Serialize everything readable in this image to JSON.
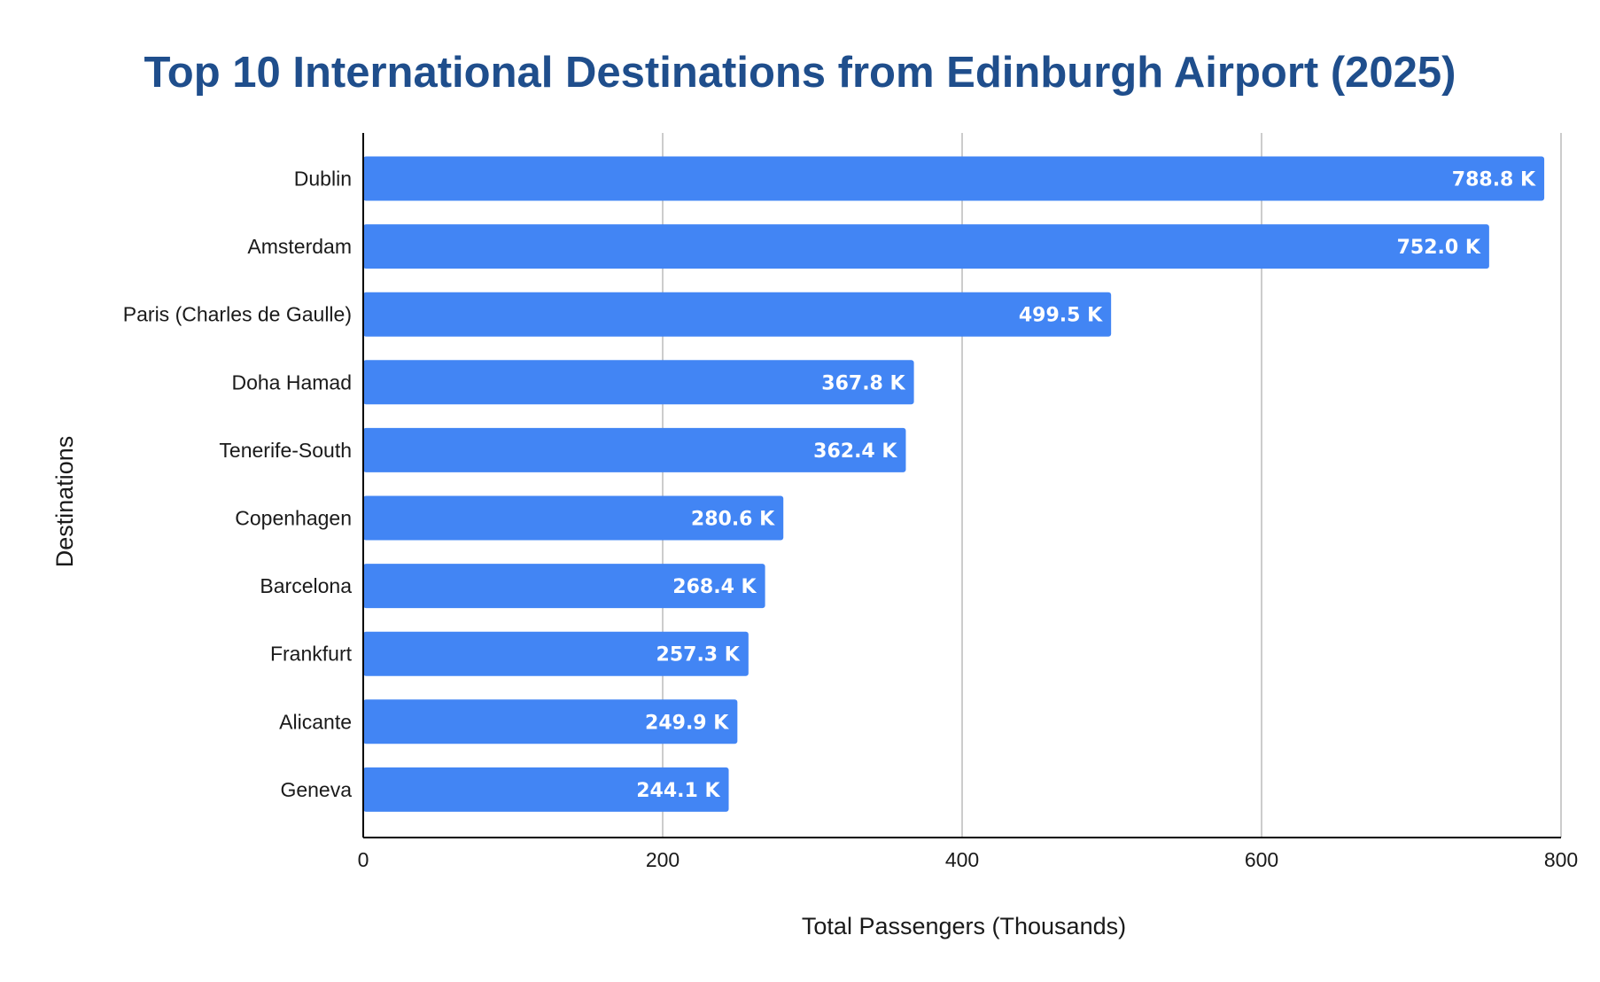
{
  "chart_data": {
    "type": "bar",
    "orientation": "horizontal",
    "title": "Top 10 International Destinations from Edinburgh Airport (2025)",
    "xlabel": "Total Passengers (Thousands)",
    "ylabel": "Destinations",
    "categories": [
      "Dublin",
      "Amsterdam",
      "Paris (Charles de Gaulle)",
      "Doha Hamad",
      "Tenerife-South",
      "Copenhagen",
      "Barcelona",
      "Frankfurt",
      "Alicante",
      "Geneva"
    ],
    "values": [
      788.8,
      752.0,
      499.5,
      367.8,
      362.4,
      280.6,
      268.4,
      257.3,
      249.9,
      244.1
    ],
    "data_labels": [
      "788.8 K",
      "752.0 K",
      "499.5 K",
      "367.8 K",
      "362.4 K",
      "280.6 K",
      "268.4 K",
      "257.3 K",
      "249.9 K",
      "244.1 K"
    ],
    "xlim": [
      0,
      800
    ],
    "xticks": [
      0,
      200,
      400,
      600,
      800
    ],
    "xtick_labels": [
      "0",
      "200",
      "400",
      "600",
      "800"
    ],
    "grid": "vertical",
    "legend": "none",
    "colors": {
      "bar": "#4285f4",
      "title": "#1f4e8c",
      "grid": "#cccccc",
      "axis": "#000000",
      "data_label": "#ffffff"
    }
  }
}
